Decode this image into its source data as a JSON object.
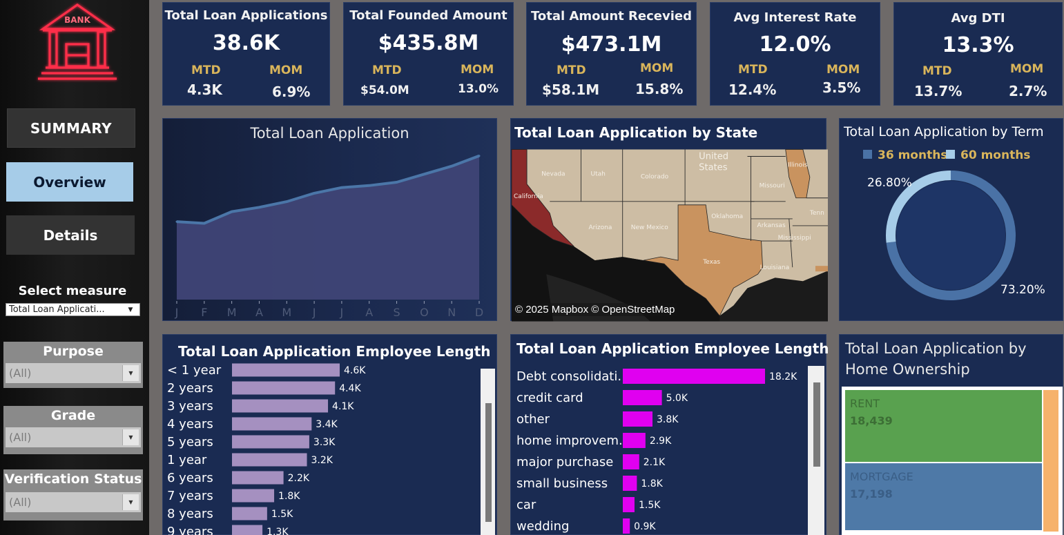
{
  "sidebar": {
    "logo_text": "BANK",
    "nav": {
      "summary": "SUMMARY",
      "overview": "Overview",
      "details": "Details"
    },
    "select_measure": {
      "label": "Select measure",
      "value": "Total Loan Applicati..."
    },
    "filters": [
      {
        "title": "Purpose",
        "value": "(All)"
      },
      {
        "title": "Grade",
        "value": "(All)"
      },
      {
        "title": "Verification Status",
        "value": "(All)"
      }
    ]
  },
  "kpis": [
    {
      "title": "Total Loan Applications",
      "value": "38.6K",
      "mtd_label": "MTD",
      "mtd": "4.3K",
      "mom_label": "MOM",
      "mom": "6.9%"
    },
    {
      "title": "Total Founded Amount",
      "value": "$435.8M",
      "mtd_label": "MTD",
      "mtd": "$54.0M",
      "mom_label": "MOM",
      "mom": "13.0%"
    },
    {
      "title": "Total  Amount Recevied",
      "value": "$473.1M",
      "mtd_label": "MTD",
      "mtd": "$58.1M",
      "mom_label": "MOM",
      "mom": "15.8%"
    },
    {
      "title": "Avg Interest Rate",
      "value": "12.0%",
      "mtd_label": "MTD",
      "mtd": "12.4%",
      "mom_label": "MOM",
      "mom": "3.5%"
    },
    {
      "title": "Avg DTI",
      "value": "13.3%",
      "mtd_label": "MTD",
      "mtd": "13.7%",
      "mom_label": "MOM",
      "mom": "2.7%"
    }
  ],
  "panels": {
    "line_title": "Total Loan Application",
    "map_title": "Total Loan Application by State",
    "map_attribution": "© 2025 Mapbox © OpenStreetMap",
    "map_states": {
      "ca": "California",
      "nv": "Nevada",
      "ut": "Utah",
      "co": "Colorado",
      "az": "Arizona",
      "nm": "New Mexico",
      "tx": "Texas",
      "ok": "Oklahoma",
      "ar": "Arkansas",
      "mo": "Missouri",
      "il": "Illinois",
      "ms": "Mississippi",
      "la": "Louisiana",
      "tn": "Tenn",
      "us1": "United",
      "us2": "States"
    },
    "donut_title": "Total Loan Application by Term",
    "emp_title": "Total Loan Application Employee Length",
    "purp_title": "Total Loan Application Employee Length",
    "home_title_1": "Total Loan Application by",
    "home_title_2": "Home Ownership"
  },
  "colors": {
    "card_bg": "#1a2b52",
    "accent_gold": "#d9b55b",
    "area_fill": "#3f4476",
    "line": "#4b76a8",
    "donut_36": "#4a72a6",
    "donut_60": "#a6cce8",
    "emp_bar": "#a590c0",
    "purpose_bar": "#e000f0",
    "rent": "#59a14f",
    "mortgage": "#4e79a7",
    "own": "#f6b26b"
  },
  "chart_data": [
    {
      "type": "area",
      "title": "Total Loan Application",
      "categories": [
        "J",
        "F",
        "M",
        "A",
        "M",
        "J",
        "J",
        "A",
        "S",
        "O",
        "N",
        "D"
      ],
      "values": [
        2.33,
        2.28,
        2.63,
        2.76,
        2.93,
        3.18,
        3.35,
        3.41,
        3.51,
        3.75,
        3.99,
        4.3
      ],
      "ylim": [
        0,
        4.5
      ],
      "grid": false
    },
    {
      "type": "pie",
      "title": "Total Loan Application by Term",
      "labels": [
        "36 months",
        "60 months"
      ],
      "values": [
        73.2,
        26.8
      ],
      "value_labels": [
        "73.20%",
        "26.80%"
      ],
      "legend": "top"
    },
    {
      "type": "bar",
      "title": "Total Loan Application Employee Length",
      "categories": [
        "< 1 year",
        "2 years",
        "3 years",
        "4 years",
        "5 years",
        "1 year",
        "6 years",
        "7 years",
        "8 years",
        "9 years"
      ],
      "values": [
        4.6,
        4.4,
        4.1,
        3.4,
        3.3,
        3.2,
        2.2,
        1.8,
        1.5,
        1.3
      ],
      "value_labels": [
        "4.6K",
        "4.4K",
        "4.1K",
        "3.4K",
        "3.3K",
        "3.2K",
        "2.2K",
        "1.8K",
        "1.5K",
        "1.3K"
      ]
    },
    {
      "type": "bar",
      "title": "Total Loan Application Employee Length",
      "categories": [
        "Debt consolidati..",
        "credit card",
        "other",
        "home improvem..",
        "major purchase",
        "small business",
        "car",
        "wedding"
      ],
      "values": [
        18.2,
        5.0,
        3.8,
        2.9,
        2.1,
        1.8,
        1.5,
        0.9
      ],
      "value_labels": [
        "18.2K",
        "5.0K",
        "3.8K",
        "2.9K",
        "2.1K",
        "1.8K",
        "1.5K",
        "0.9K"
      ]
    },
    {
      "type": "treemap",
      "title": "Total Loan Application by Home Ownership",
      "categories": [
        "RENT",
        "MORTGAGE"
      ],
      "values": [
        18439,
        17198
      ],
      "value_labels": [
        "18,439",
        "17,198"
      ]
    }
  ]
}
